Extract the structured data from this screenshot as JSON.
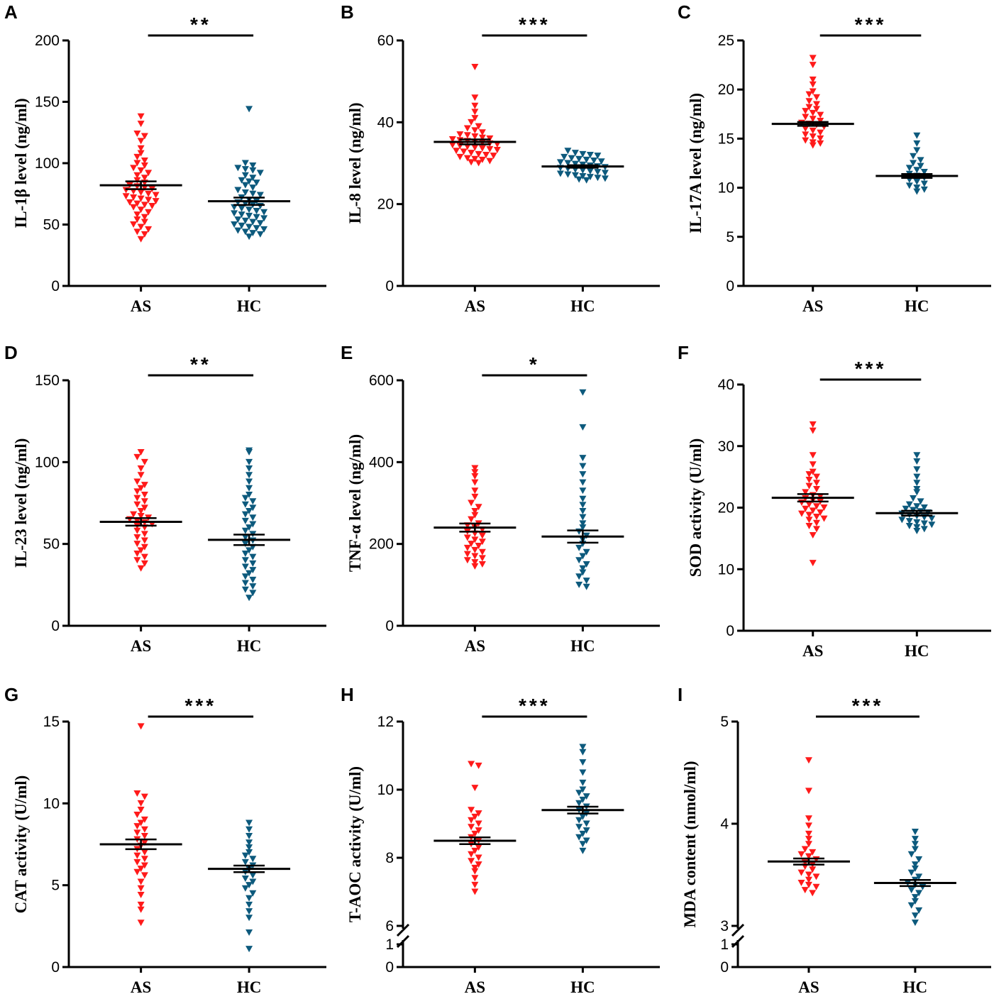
{
  "figure": {
    "title": ""
  },
  "chart_data": [
    {
      "type": "scatter",
      "panel": "A",
      "ylabel": "IL-1β level (ng/ml)",
      "ylim": [
        0,
        200
      ],
      "yticks": [
        "0",
        "50",
        "100",
        "150",
        "200"
      ],
      "categories": [
        "AS",
        "HC"
      ],
      "significance": "**",
      "broken_axis": false,
      "groups": [
        {
          "name": "AS",
          "color": "#ff1a1a",
          "mean": 82,
          "sem": 3.2,
          "values": [
            138,
            132,
            124,
            122,
            118,
            112,
            108,
            105,
            102,
            100,
            98,
            96,
            94,
            92,
            90,
            88,
            86,
            84,
            82,
            81,
            80,
            79,
            78,
            77,
            76,
            75,
            74,
            73,
            72,
            71,
            70,
            69,
            68,
            67,
            66,
            65,
            64,
            62,
            60,
            58,
            56,
            54,
            52,
            50,
            48,
            46,
            44,
            42,
            38
          ]
        },
        {
          "name": "HC",
          "color": "#0d5a7d",
          "mean": 69,
          "sem": 3.0,
          "values": [
            144,
            100,
            98,
            96,
            95,
            94,
            92,
            90,
            88,
            86,
            85,
            84,
            82,
            80,
            78,
            76,
            75,
            74,
            72,
            70,
            69,
            68,
            67,
            66,
            65,
            64,
            63,
            62,
            61,
            60,
            59,
            58,
            57,
            56,
            55,
            54,
            53,
            52,
            51,
            50,
            49,
            48,
            47,
            46,
            45,
            44,
            43,
            42,
            40
          ]
        }
      ]
    },
    {
      "type": "scatter",
      "panel": "B",
      "ylabel": "IL-8 level (ng/ml)",
      "ylim": [
        0,
        60
      ],
      "yticks": [
        "0",
        "20",
        "40",
        "60"
      ],
      "categories": [
        "AS",
        "HC"
      ],
      "significance": "***",
      "broken_axis": false,
      "groups": [
        {
          "name": "AS",
          "color": "#ff1a1a",
          "mean": 35.2,
          "sem": 0.6,
          "values": [
            53.5,
            46,
            44,
            42.5,
            41,
            40,
            39,
            38.5,
            38,
            37.5,
            37,
            36.8,
            36.5,
            36.2,
            36,
            35.8,
            35.6,
            35.4,
            35.2,
            35,
            34.8,
            34.6,
            34.4,
            34.2,
            34,
            33.8,
            33.6,
            33.4,
            33.2,
            33,
            32.8,
            32.5,
            32.2,
            32,
            31.8,
            31.5,
            31.2,
            31,
            30.8,
            30.5,
            30.2,
            30
          ]
        },
        {
          "name": "HC",
          "color": "#0d5a7d",
          "mean": 29.2,
          "sem": 0.3,
          "values": [
            33,
            32.5,
            32.2,
            32,
            31.8,
            31.5,
            31.2,
            31,
            30.8,
            30.6,
            30.4,
            30.2,
            30,
            29.8,
            29.6,
            29.4,
            29.2,
            29,
            28.8,
            28.6,
            28.4,
            28.2,
            28,
            27.8,
            27.6,
            27.4,
            27.2,
            27,
            26.8,
            26.6,
            26.4,
            26.2,
            26,
            25.8
          ]
        }
      ]
    },
    {
      "type": "scatter",
      "panel": "C",
      "ylabel": "IL-17A level (ng/ml)",
      "ylim": [
        0,
        25
      ],
      "yticks": [
        "0",
        "5",
        "10",
        "15",
        "20",
        "25"
      ],
      "categories": [
        "AS",
        "HC"
      ],
      "significance": "***",
      "broken_axis": false,
      "groups": [
        {
          "name": "AS",
          "color": "#ff1a1a",
          "mean": 16.5,
          "sem": 0.2,
          "values": [
            23.2,
            22.5,
            21,
            20.5,
            19.8,
            19.5,
            19.2,
            18.8,
            18.5,
            18.2,
            18,
            17.8,
            17.6,
            17.4,
            17.2,
            17,
            16.8,
            16.6,
            16.5,
            16.4,
            16.2,
            16,
            15.8,
            15.6,
            15.4,
            15.2,
            15,
            14.8,
            14.6,
            14.5,
            14.3
          ]
        },
        {
          "name": "HC",
          "color": "#0d5a7d",
          "mean": 11.2,
          "sem": 0.2,
          "values": [
            15.3,
            14.5,
            13.8,
            13.2,
            12.8,
            12.5,
            12.2,
            12,
            11.8,
            11.6,
            11.4,
            11.2,
            11,
            10.8,
            10.6,
            10.4,
            10.2,
            10,
            9.8,
            9.6
          ]
        }
      ]
    },
    {
      "type": "scatter",
      "panel": "D",
      "ylabel": "IL-23 level (ng/ml)",
      "ylim": [
        0,
        150
      ],
      "yticks": [
        "0",
        "50",
        "100",
        "150"
      ],
      "categories": [
        "AS",
        "HC"
      ],
      "significance": "**",
      "broken_axis": false,
      "groups": [
        {
          "name": "AS",
          "color": "#ff1a1a",
          "mean": 63.5,
          "sem": 2.3,
          "values": [
            106,
            103,
            100,
            96,
            92,
            88,
            86,
            84,
            82,
            80,
            78,
            76,
            74,
            72,
            70,
            68,
            67,
            66,
            65,
            64,
            63,
            62,
            61,
            60,
            58,
            56,
            54,
            52,
            50,
            48,
            46,
            44,
            42,
            40,
            38,
            35
          ]
        },
        {
          "name": "HC",
          "color": "#0d5a7d",
          "mean": 52.5,
          "sem": 3.2,
          "values": [
            107,
            106,
            100,
            96,
            92,
            88,
            84,
            80,
            78,
            76,
            74,
            72,
            70,
            68,
            66,
            64,
            62,
            60,
            58,
            56,
            54,
            52,
            50,
            48,
            46,
            44,
            42,
            40,
            38,
            36,
            34,
            32,
            30,
            28,
            26,
            24,
            22,
            20,
            17
          ]
        }
      ]
    },
    {
      "type": "scatter",
      "panel": "E",
      "ylabel": "TNF-α level (ng/ml)",
      "ylim": [
        0,
        600
      ],
      "yticks": [
        "0",
        "200",
        "400",
        "600"
      ],
      "categories": [
        "AS",
        "HC"
      ],
      "significance": "*",
      "broken_axis": false,
      "groups": [
        {
          "name": "AS",
          "color": "#ff1a1a",
          "mean": 240,
          "sem": 10,
          "values": [
            385,
            375,
            365,
            350,
            330,
            315,
            300,
            290,
            280,
            270,
            260,
            250,
            245,
            240,
            235,
            230,
            225,
            220,
            215,
            210,
            205,
            200,
            195,
            190,
            185,
            180,
            175,
            170,
            165,
            160,
            155,
            150,
            145
          ]
        },
        {
          "name": "HC",
          "color": "#0d5a7d",
          "mean": 218,
          "sem": 15,
          "values": [
            570,
            485,
            410,
            390,
            370,
            350,
            330,
            310,
            295,
            280,
            265,
            250,
            240,
            230,
            220,
            210,
            200,
            190,
            180,
            170,
            160,
            150,
            140,
            130,
            120,
            110,
            100,
            95
          ]
        }
      ]
    },
    {
      "type": "scatter",
      "panel": "F",
      "ylabel": "SOD activity (U/ml)",
      "ylim": [
        0,
        40
      ],
      "yticks": [
        "0",
        "10",
        "20",
        "30",
        "40"
      ],
      "categories": [
        "AS",
        "HC"
      ],
      "significance": "***",
      "broken_axis": false,
      "groups": [
        {
          "name": "AS",
          "color": "#ff1a1a",
          "mean": 21.6,
          "sem": 0.6,
          "values": [
            33.5,
            32.5,
            28.5,
            27,
            25.8,
            25.4,
            25,
            24.5,
            24,
            23.5,
            23,
            22.5,
            22,
            21.8,
            21.5,
            21.2,
            21,
            20.8,
            20.5,
            20.2,
            20,
            19.8,
            19.5,
            19.2,
            19,
            18.8,
            18.5,
            18.2,
            18,
            17.5,
            17,
            16.5,
            15.5,
            11
          ]
        },
        {
          "name": "HC",
          "color": "#0d5a7d",
          "mean": 19.1,
          "sem": 0.4,
          "values": [
            28.5,
            27.5,
            26.2,
            25,
            24,
            23,
            22.5,
            21.5,
            21,
            20.5,
            20.2,
            20,
            19.8,
            19.6,
            19.4,
            19.2,
            19,
            18.8,
            18.6,
            18.4,
            18.2,
            18,
            17.8,
            17.6,
            17.4,
            17.2,
            17,
            16.8,
            16.5,
            16.2
          ]
        }
      ]
    },
    {
      "type": "scatter",
      "panel": "G",
      "ylabel": "CAT activity (U/ml)",
      "ylim": [
        0,
        15
      ],
      "yticks": [
        "0",
        "5",
        "10",
        "15"
      ],
      "categories": [
        "AS",
        "HC"
      ],
      "significance": "***",
      "broken_axis": false,
      "groups": [
        {
          "name": "AS",
          "color": "#ff1a1a",
          "mean": 7.5,
          "sem": 0.3,
          "values": [
            14.7,
            10.6,
            10.4,
            10,
            9.6,
            9.3,
            9,
            8.8,
            8.6,
            8.4,
            8.2,
            8,
            7.8,
            7.6,
            7.4,
            7.2,
            7,
            6.8,
            6.6,
            6.4,
            6.2,
            6,
            5.8,
            5.6,
            5.2,
            4.8,
            4.4,
            3.8,
            3.5,
            2.7
          ]
        },
        {
          "name": "HC",
          "color": "#0d5a7d",
          "mean": 6.0,
          "sem": 0.2,
          "values": [
            8.8,
            8.4,
            8,
            7.6,
            7.3,
            7,
            6.8,
            6.6,
            6.4,
            6.2,
            6,
            5.8,
            5.6,
            5.4,
            5.2,
            5,
            4.8,
            4.5,
            4.2,
            3.8,
            3.4,
            3,
            2.1,
            1.1
          ]
        }
      ]
    },
    {
      "type": "scatter",
      "panel": "H",
      "ylabel": "T-AOC activity (U/ml)",
      "ylim": [
        0,
        12
      ],
      "yticks": [
        "0",
        "1",
        "6",
        "8",
        "10",
        "12"
      ],
      "categories": [
        "AS",
        "HC"
      ],
      "significance": "***",
      "broken_axis": true,
      "groups": [
        {
          "name": "AS",
          "color": "#ff1a1a",
          "mean": 8.5,
          "sem": 0.1,
          "values": [
            10.75,
            10.7,
            10.05,
            9.4,
            9.3,
            9.2,
            9.1,
            9,
            8.9,
            8.8,
            8.7,
            8.6,
            8.5,
            8.4,
            8.3,
            8.2,
            8.1,
            8,
            7.9,
            7.8,
            7.7,
            7.6,
            7.4,
            7.2,
            7
          ]
        },
        {
          "name": "HC",
          "color": "#0d5a7d",
          "mean": 9.4,
          "sem": 0.1,
          "values": [
            11.25,
            11.1,
            10.8,
            10.5,
            10.2,
            10,
            9.9,
            9.8,
            9.7,
            9.6,
            9.5,
            9.4,
            9.3,
            9.2,
            9.1,
            9,
            8.9,
            8.8,
            8.7,
            8.6,
            8.5,
            8.4,
            8.2
          ]
        }
      ]
    },
    {
      "type": "scatter",
      "panel": "I",
      "ylabel": "MDA content (nmol/ml)",
      "ylim": [
        0,
        5
      ],
      "yticks": [
        "0",
        "1",
        "3",
        "4",
        "5"
      ],
      "categories": [
        "AS",
        "HC"
      ],
      "significance": "***",
      "broken_axis": true,
      "groups": [
        {
          "name": "AS",
          "color": "#ff1a1a",
          "mean": 3.63,
          "sem": 0.03,
          "values": [
            4.62,
            4.32,
            4.05,
            3.98,
            3.9,
            3.85,
            3.8,
            3.75,
            3.72,
            3.7,
            3.68,
            3.65,
            3.62,
            3.6,
            3.58,
            3.55,
            3.52,
            3.5,
            3.48,
            3.45,
            3.42,
            3.4,
            3.38,
            3.35,
            3.32
          ]
        },
        {
          "name": "HC",
          "color": "#0d5a7d",
          "mean": 3.42,
          "sem": 0.03,
          "values": [
            3.92,
            3.85,
            3.8,
            3.75,
            3.7,
            3.65,
            3.6,
            3.56,
            3.52,
            3.48,
            3.45,
            3.42,
            3.4,
            3.38,
            3.35,
            3.32,
            3.28,
            3.24,
            3.2,
            3.15,
            3.1,
            3.03
          ]
        }
      ]
    }
  ]
}
